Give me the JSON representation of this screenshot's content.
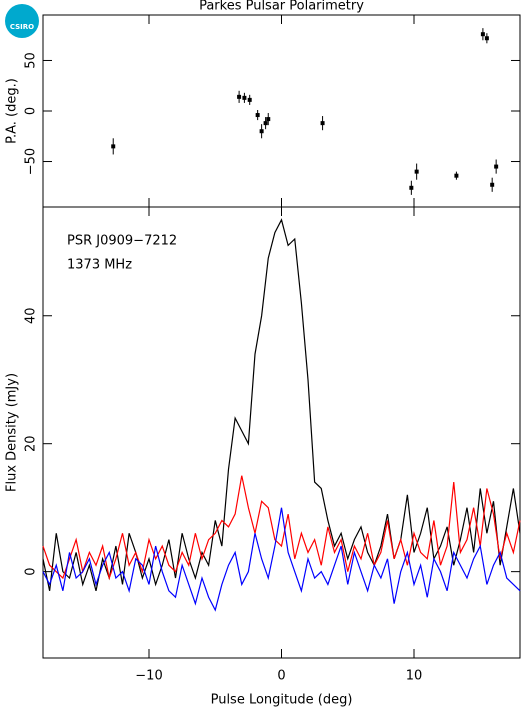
{
  "logo": "CSIRO",
  "chart_data": [
    {
      "type": "errorbar",
      "title": "Parkes Pulsar Polarimetry",
      "ylabel": "P.A. (deg.)",
      "color": "#000000",
      "x": [
        -12.7,
        -3.2,
        -2.8,
        -2.4,
        -1.8,
        -1.5,
        -1.2,
        -1.0,
        3.1,
        9.8,
        10.2,
        13.2,
        15.2,
        15.5,
        15.9,
        16.2
      ],
      "values": [
        -35,
        14,
        13,
        11,
        -4,
        -20,
        -12,
        -8,
        -12,
        -76,
        -60,
        -64,
        76,
        72,
        -73,
        -55
      ],
      "errors": [
        8,
        6,
        5,
        5,
        5,
        7,
        6,
        6,
        7,
        7,
        8,
        4,
        6,
        5,
        7,
        7
      ],
      "xlim": [
        -18,
        18
      ],
      "xticks": [
        -10,
        0,
        10
      ],
      "ylim": [
        -95,
        95
      ],
      "yticks": [
        {
          "value": -50,
          "label": "−50"
        },
        0,
        50
      ]
    },
    {
      "type": "line",
      "annotations": [
        "PSR J0909−7212",
        "1373 MHz"
      ],
      "xlabel": "Pulse Longitude (deg)",
      "ylabel": "Flux Density (mJy)",
      "x": [
        -18,
        -17.5,
        -17,
        -16.5,
        -16,
        -15.5,
        -15,
        -14.5,
        -14,
        -13.5,
        -13,
        -12.5,
        -12,
        -11.5,
        -11,
        -10.5,
        -10,
        -9.5,
        -9,
        -8.5,
        -8,
        -7.5,
        -7,
        -6.5,
        -6,
        -5.5,
        -5,
        -4.5,
        -4,
        -3.5,
        -3,
        -2.5,
        -2,
        -1.5,
        -1,
        -0.5,
        0,
        0.5,
        1,
        1.5,
        2,
        2.5,
        3,
        3.5,
        4,
        4.5,
        5,
        5.5,
        6,
        6.5,
        7,
        7.5,
        8,
        8.5,
        9,
        9.5,
        10,
        10.5,
        11,
        11.5,
        12,
        12.5,
        13,
        13.5,
        14,
        14.5,
        15,
        15.5,
        16,
        16.5,
        17,
        17.5,
        18
      ],
      "series": [
        {
          "color": "#000000",
          "values": [
            2,
            -3,
            6,
            0,
            -1,
            3,
            -2,
            1,
            -3,
            2,
            -1,
            4,
            -2,
            6,
            3,
            -1,
            2,
            -2,
            1,
            5,
            -1,
            6,
            2,
            -1,
            3,
            1,
            8,
            4,
            16,
            24,
            22,
            20,
            34,
            40,
            49,
            53,
            55,
            51,
            52,
            42,
            30,
            14,
            13,
            8,
            4,
            6,
            2,
            5,
            7,
            3,
            1,
            4,
            9,
            2,
            5,
            12,
            3,
            6,
            10,
            2,
            4,
            7,
            1,
            5,
            10,
            3,
            13,
            6,
            11,
            1,
            7,
            13,
            6
          ]
        },
        {
          "color": "#ff0000",
          "values": [
            4,
            1,
            0,
            -1,
            2,
            5,
            0,
            3,
            1,
            4,
            -1,
            2,
            6,
            1,
            3,
            0,
            5,
            2,
            4,
            1,
            0,
            3,
            1,
            6,
            2,
            5,
            6,
            8,
            7,
            9,
            15,
            10,
            6,
            11,
            10,
            5,
            4,
            9,
            2,
            6,
            3,
            5,
            1,
            7,
            3,
            5,
            0,
            4,
            2,
            6,
            1,
            3,
            8,
            2,
            5,
            1,
            6,
            3,
            2,
            8,
            1,
            4,
            14,
            3,
            5,
            10,
            4,
            13,
            9,
            2,
            6,
            3,
            8
          ]
        },
        {
          "color": "#0000ff",
          "values": [
            0,
            -2,
            1,
            -3,
            3,
            -1,
            0,
            2,
            -2,
            1,
            3,
            -1,
            0,
            -3,
            2,
            1,
            -2,
            4,
            0,
            -3,
            -4,
            1,
            -2,
            -5,
            -1,
            -4,
            -6,
            -2,
            1,
            3,
            -2,
            0,
            6,
            2,
            -1,
            4,
            10,
            3,
            0,
            -3,
            2,
            -1,
            0,
            -2,
            1,
            4,
            -2,
            3,
            0,
            -3,
            1,
            -1,
            2,
            -5,
            0,
            3,
            -2,
            1,
            -4,
            2,
            0,
            -3,
            3,
            1,
            -1,
            2,
            4,
            -2,
            1,
            3,
            -1,
            -2,
            -3
          ]
        }
      ],
      "xlim": [
        -18,
        18
      ],
      "xticks": [
        {
          "value": -10,
          "label": "−10"
        },
        0,
        10
      ],
      "ylim": [
        -13.5,
        57
      ],
      "yticks": [
        0,
        20,
        40
      ]
    }
  ]
}
